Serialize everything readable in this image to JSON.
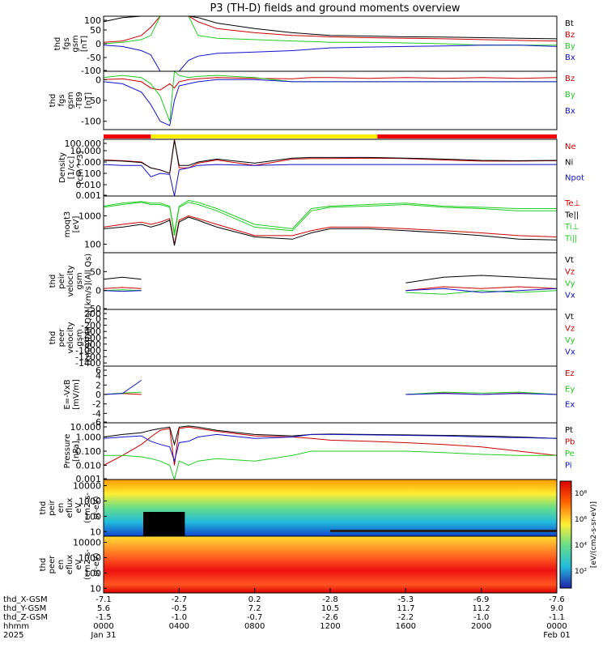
{
  "title": "P3 (TH-D) fields and ground moments overview",
  "panels": [
    {
      "id": "fgs_gsm",
      "ylabel": [
        "thd",
        "fgs",
        "gsm",
        "[nT]"
      ],
      "ylim": [
        -100,
        100
      ],
      "log": false,
      "ticks": [
        "100",
        "50",
        "0",
        "-50",
        "-100"
      ],
      "legend": [
        {
          "label": "Bt",
          "color": "#000000"
        },
        {
          "label": "Bz",
          "color": "#cc0000"
        },
        {
          "label": "By",
          "color": "#22cc22"
        },
        {
          "label": "Bx",
          "color": "#1111cc"
        }
      ]
    },
    {
      "id": "fgs_gsm_t89",
      "ylabel": [
        "thd",
        "fgs",
        "gsm",
        "-T89",
        "[nT]"
      ],
      "ylim": [
        -120,
        20
      ],
      "log": false,
      "ticks": [
        "0",
        "-50",
        "-100"
      ],
      "legend": [
        {
          "label": "Bz",
          "color": "#cc0000"
        },
        {
          "label": "By",
          "color": "#22cc22"
        },
        {
          "label": "Bx",
          "color": "#1111cc"
        }
      ]
    },
    {
      "id": "density",
      "ylabel": [
        "Density",
        "[1/cc]",
        "[cm^-3]"
      ],
      "ylim": [
        0.001,
        100
      ],
      "log": true,
      "ticks": [
        "100.000",
        "10.000",
        "1.000",
        "0.100",
        "0.010",
        "0.001"
      ],
      "legend": [
        {
          "label": "Ne",
          "color": "#cc0000"
        },
        {
          "label": "Ni",
          "color": "#000000"
        },
        {
          "label": "Npot",
          "color": "#1111cc"
        }
      ]
    },
    {
      "id": "temperature",
      "ylabel": [
        "moqt3",
        "[eV]"
      ],
      "ylim": [
        50,
        5000
      ],
      "log": true,
      "ticks": [
        "1000",
        "100"
      ],
      "legend": [
        {
          "label": "Te⊥",
          "color": "#cc0000"
        },
        {
          "label": "Te||",
          "color": "#000000"
        },
        {
          "label": "Ti⊥",
          "color": "#22cc22"
        },
        {
          "label": "Ti||",
          "color": "#22cc22"
        }
      ]
    },
    {
      "id": "peir_velocity",
      "ylabel": [
        "thd",
        "peir",
        "velocity",
        "gsm",
        "[km/s](All Qs)"
      ],
      "ylim": [
        -50,
        100
      ],
      "log": false,
      "ticks": [
        "50",
        "0",
        "-50"
      ],
      "legend": [
        {
          "label": "Vt",
          "color": "#000000"
        },
        {
          "label": "Vz",
          "color": "#cc0000"
        },
        {
          "label": "Vy",
          "color": "#22cc22"
        },
        {
          "label": "Vx",
          "color": "#1111cc"
        }
      ]
    },
    {
      "id": "peer_velocity",
      "ylabel": [
        "thd",
        "peer",
        "velocity",
        "gsm",
        "[km/s](All Qs)"
      ],
      "ylim": [
        -1500,
        300
      ],
      "log": false,
      "ticks": [
        "200",
        "0",
        "-200",
        "-400",
        "-600",
        "-800",
        "-1000",
        "-1200",
        "-1400"
      ],
      "legend": [
        {
          "label": "Vt",
          "color": "#000000"
        },
        {
          "label": "Vz",
          "color": "#cc0000"
        },
        {
          "label": "Vy",
          "color": "#22cc22"
        },
        {
          "label": "Vx",
          "color": "#1111cc"
        }
      ]
    },
    {
      "id": "efield",
      "ylabel": [
        "E=-VxB",
        "[mV/m]"
      ],
      "ylim": [
        -6,
        6
      ],
      "log": false,
      "ticks": [
        "6",
        "4",
        "2",
        "0",
        "-2",
        "-4",
        "-6"
      ],
      "legend": [
        {
          "label": "Ez",
          "color": "#cc0000"
        },
        {
          "label": "Ey",
          "color": "#22cc22"
        },
        {
          "label": "Ex",
          "color": "#1111cc"
        }
      ]
    },
    {
      "id": "pressure",
      "ylabel": [
        "Pressure",
        "[nPa]"
      ],
      "ylim": [
        0.001,
        10
      ],
      "log": true,
      "ticks": [
        "10.000",
        "1.000",
        "0.100",
        "0.010",
        "0.001"
      ],
      "legend": [
        {
          "label": "Pt",
          "color": "#000000"
        },
        {
          "label": "Pb",
          "color": "#cc0000"
        },
        {
          "label": "Pe",
          "color": "#22cc22"
        },
        {
          "label": "Pi",
          "color": "#1111cc"
        }
      ]
    },
    {
      "id": "peir_eflux",
      "ylabel": [
        "thd",
        "peir",
        "en",
        "eflux",
        "eV",
        "(cm2-s-",
        "sr-eV)"
      ],
      "ylim": [
        5,
        25000
      ],
      "log": true,
      "ticks": [
        "10000",
        "1000",
        "100",
        "10"
      ],
      "legend": []
    },
    {
      "id": "peer_eflux",
      "ylabel": [
        "thd",
        "peer",
        "en",
        "eflux",
        "eV",
        "(cm2-s-",
        "sr-eV)"
      ],
      "ylim": [
        5,
        25000
      ],
      "log": true,
      "ticks": [
        "10000",
        "1000",
        "100",
        "10"
      ],
      "legend": []
    }
  ],
  "colorbar": {
    "ticks": [
      "10⁸",
      "10⁶",
      "10⁴",
      "10²"
    ],
    "label": "[eV/(cm2-s-sr-eV)]"
  },
  "axis_rows": {
    "labels": [
      "thd_X-GSM",
      "thd_Y-GSM",
      "thd_Z-GSM",
      "hhmm",
      "2025"
    ],
    "columns": [
      [
        "-7.1",
        "5.6",
        "-1.5",
        "0000",
        "Jan 31"
      ],
      [
        "-2.7",
        "-0.5",
        "-1.0",
        "0400",
        ""
      ],
      [
        "0.2",
        "7.2",
        "-0.7",
        "0800",
        ""
      ],
      [
        "-2.8",
        "10.5",
        "-2.6",
        "1200",
        ""
      ],
      [
        "-5.3",
        "11.7",
        "-2.2",
        "1600",
        ""
      ],
      [
        "-6.9",
        "11.2",
        "-1.0",
        "2000",
        ""
      ],
      [
        "-7.6",
        "9.0",
        "-1.1",
        "0000",
        "Feb 01"
      ]
    ]
  },
  "chart_data": {
    "type": "line",
    "title": "P3 (TH-D) fields and ground moments overview",
    "x_unit": "hours",
    "x": [
      0,
      1,
      2,
      2.5,
      3,
      3.5,
      3.75,
      4,
      4.5,
      5,
      6,
      8,
      10,
      11,
      12,
      14,
      16,
      18,
      20,
      22,
      24
    ],
    "series": [
      {
        "panel": "fgs_gsm",
        "name": "Bt",
        "values": [
          80,
          95,
          100,
          100,
          100,
          100,
          100,
          100,
          100,
          95,
          75,
          55,
          40,
          35,
          30,
          28,
          25,
          24,
          22,
          20,
          18
        ]
      },
      {
        "panel": "fgs_gsm",
        "name": "Bz",
        "values": [
          5,
          10,
          30,
          60,
          100,
          100,
          100,
          100,
          100,
          80,
          55,
          40,
          30,
          28,
          25,
          22,
          20,
          18,
          15,
          12,
          10
        ]
      },
      {
        "panel": "fgs_gsm",
        "name": "By",
        "values": [
          0,
          5,
          15,
          30,
          100,
          100,
          100,
          100,
          100,
          30,
          20,
          15,
          10,
          8,
          5,
          5,
          3,
          0,
          -5,
          -5,
          -5
        ]
      },
      {
        "panel": "fgs_gsm",
        "name": "Bx",
        "values": [
          -5,
          -10,
          -25,
          -40,
          -100,
          -100,
          -100,
          -100,
          -60,
          -45,
          -35,
          -30,
          -25,
          -20,
          -15,
          -12,
          -10,
          -8,
          -5,
          -5,
          -10
        ]
      },
      {
        "panel": "fgs_gsm_t89",
        "name": "Bz",
        "values": [
          0,
          2,
          -5,
          -20,
          -25,
          -10,
          -20,
          -5,
          0,
          2,
          5,
          3,
          2,
          5,
          5,
          3,
          5,
          3,
          5,
          3,
          5
        ]
      },
      {
        "panel": "fgs_gsm_t89",
        "name": "By",
        "values": [
          5,
          10,
          5,
          -10,
          -40,
          -100,
          20,
          10,
          5,
          8,
          10,
          5,
          -5,
          -5,
          -5,
          -5,
          -5,
          -5,
          -5,
          -5,
          -5
        ]
      },
      {
        "panel": "fgs_gsm_t89",
        "name": "Bx",
        "values": [
          -5,
          -10,
          -30,
          -60,
          -100,
          -110,
          -50,
          -15,
          -10,
          -5,
          0,
          0,
          -5,
          -5,
          -5,
          -5,
          -5,
          -5,
          -5,
          -5,
          -5
        ]
      },
      {
        "panel": "density",
        "name": "Ne",
        "values": [
          1.5,
          1.3,
          1.0,
          0.3,
          0.2,
          0.1,
          100,
          0.3,
          0.3,
          0.8,
          1.5,
          0.5,
          1.8,
          2.0,
          2.0,
          2.2,
          2.0,
          1.5,
          1.2,
          1.2,
          1.3
        ]
      },
      {
        "panel": "density",
        "name": "Ni",
        "values": [
          1.4,
          1.2,
          0.9,
          0.3,
          0.2,
          0.1,
          80,
          0.5,
          0.5,
          1.0,
          1.8,
          0.8,
          2.2,
          2.5,
          2.5,
          2.5,
          2.2,
          1.8,
          1.4,
          1.3,
          1.4
        ]
      },
      {
        "panel": "density",
        "name": "Npot",
        "values": [
          0.6,
          0.5,
          0.5,
          0.05,
          0.1,
          0.08,
          0.001,
          0.2,
          0.3,
          0.5,
          0.6,
          0.5,
          0.6,
          0.6,
          0.6,
          0.6,
          0.6,
          0.6,
          0.6,
          0.6,
          0.6
        ]
      },
      {
        "panel": "temperature",
        "name": "Te⊥",
        "values": [
          400,
          500,
          600,
          500,
          600,
          800,
          100,
          700,
          1000,
          800,
          500,
          200,
          200,
          300,
          400,
          400,
          350,
          300,
          250,
          200,
          180
        ]
      },
      {
        "panel": "temperature",
        "name": "Te||",
        "values": [
          350,
          400,
          500,
          400,
          500,
          700,
          90,
          600,
          900,
          700,
          400,
          180,
          150,
          250,
          350,
          350,
          300,
          250,
          200,
          150,
          140
        ]
      },
      {
        "panel": "temperature",
        "name": "Ti⊥",
        "values": [
          2000,
          2500,
          3000,
          2500,
          2500,
          2000,
          200,
          2000,
          3000,
          2500,
          1500,
          400,
          300,
          1500,
          2000,
          2200,
          2500,
          2000,
          1800,
          1500,
          1500
        ]
      },
      {
        "panel": "temperature",
        "name": "Ti||",
        "values": [
          2200,
          2800,
          3200,
          2800,
          2800,
          2200,
          250,
          2200,
          3500,
          3000,
          1800,
          500,
          350,
          1800,
          2200,
          2500,
          2800,
          2200,
          2000,
          1800,
          1800
        ]
      },
      {
        "panel": "peir_velocity",
        "name": "Vt",
        "values": [
          30,
          35,
          30,
          null,
          null,
          null,
          null,
          null,
          null,
          null,
          null,
          null,
          null,
          null,
          null,
          null,
          20,
          35,
          40,
          35,
          30
        ]
      },
      {
        "panel": "peir_velocity",
        "name": "Vz",
        "values": [
          5,
          8,
          5,
          null,
          null,
          null,
          null,
          null,
          null,
          null,
          null,
          null,
          null,
          null,
          null,
          null,
          0,
          10,
          5,
          10,
          5
        ]
      },
      {
        "panel": "peir_velocity",
        "name": "Vy",
        "values": [
          0,
          2,
          0,
          null,
          null,
          null,
          null,
          null,
          null,
          null,
          null,
          null,
          null,
          null,
          null,
          null,
          -5,
          -10,
          0,
          -5,
          0
        ]
      },
      {
        "panel": "peir_velocity",
        "name": "Vx",
        "values": [
          0,
          -2,
          0,
          null,
          null,
          null,
          null,
          null,
          null,
          null,
          null,
          null,
          null,
          null,
          null,
          null,
          0,
          5,
          -5,
          0,
          5
        ]
      },
      {
        "panel": "efield",
        "name": "Ez",
        "values": [
          0,
          0.2,
          0,
          null,
          null,
          null,
          null,
          null,
          null,
          null,
          null,
          null,
          null,
          null,
          null,
          null,
          0,
          0.3,
          0,
          0.3,
          0
        ]
      },
      {
        "panel": "efield",
        "name": "Ey",
        "values": [
          0,
          0.3,
          0.5,
          null,
          null,
          null,
          null,
          null,
          null,
          null,
          null,
          null,
          null,
          null,
          null,
          null,
          0,
          0.5,
          0.3,
          0.5,
          0
        ]
      },
      {
        "panel": "efield",
        "name": "Ex",
        "values": [
          0,
          0.2,
          3,
          null,
          null,
          null,
          null,
          null,
          null,
          null,
          null,
          null,
          null,
          null,
          null,
          null,
          0,
          0.2,
          0,
          0.2,
          0
        ]
      },
      {
        "panel": "pressure",
        "name": "Pt",
        "values": [
          1,
          1.5,
          2,
          3,
          4,
          5,
          0.3,
          5,
          6,
          5,
          3,
          1.5,
          1.2,
          1.5,
          1.6,
          1.5,
          1.4,
          1.3,
          1.2,
          1.0,
          0.8
        ]
      },
      {
        "panel": "pressure",
        "name": "Pb",
        "values": [
          0.01,
          0.05,
          0.3,
          1,
          3,
          4,
          0.01,
          4,
          5,
          4,
          2.5,
          1.2,
          1.0,
          0.8,
          0.6,
          0.5,
          0.4,
          0.3,
          0.2,
          0.1,
          0.05
        ]
      },
      {
        "panel": "pressure",
        "name": "Pe",
        "values": [
          0.05,
          0.05,
          0.04,
          0.03,
          0.02,
          0.01,
          0.001,
          0.02,
          0.01,
          0.02,
          0.03,
          0.02,
          0.05,
          0.1,
          0.1,
          0.1,
          0.1,
          0.08,
          0.06,
          0.05,
          0.05
        ]
      },
      {
        "panel": "pressure",
        "name": "Pi",
        "values": [
          0.8,
          1.0,
          1.2,
          0.5,
          0.3,
          0.2,
          0.02,
          0.4,
          0.5,
          1.0,
          1.5,
          0.8,
          1.0,
          1.5,
          1.5,
          1.4,
          1.3,
          1.2,
          1.0,
          0.9,
          0.8
        ]
      }
    ],
    "xlim": [
      0,
      24
    ]
  }
}
